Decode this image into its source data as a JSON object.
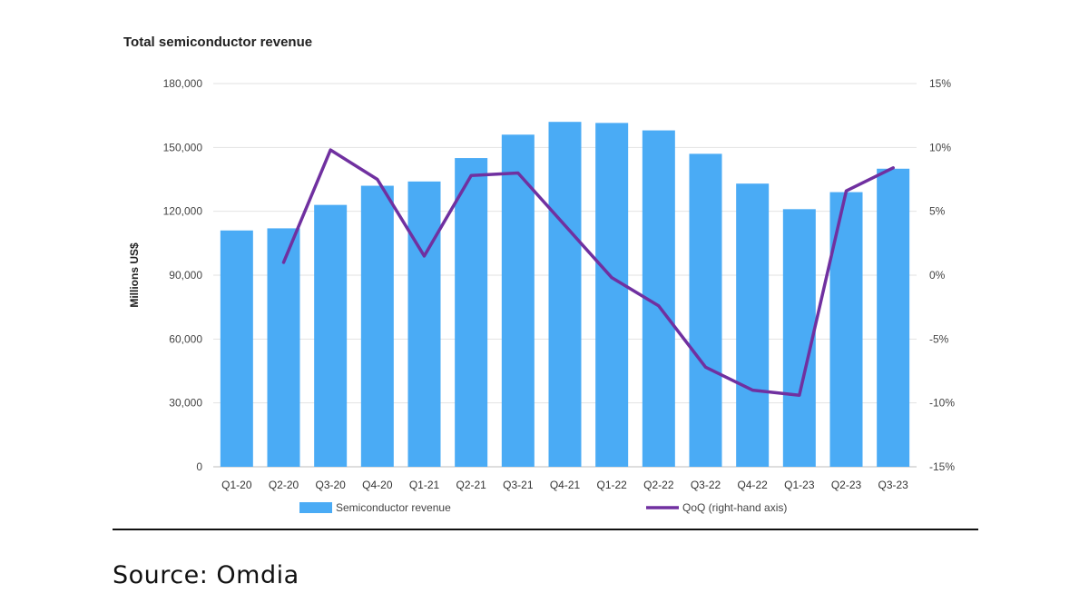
{
  "chart_data": {
    "type": "bar+line",
    "title": "Total semiconductor revenue",
    "categories": [
      "Q1-20",
      "Q2-20",
      "Q3-20",
      "Q4-20",
      "Q1-21",
      "Q2-21",
      "Q3-21",
      "Q4-21",
      "Q1-22",
      "Q2-22",
      "Q3-22",
      "Q4-22",
      "Q1-23",
      "Q2-23",
      "Q3-23"
    ],
    "series": [
      {
        "name": "Semiconductor revenue",
        "type": "bar",
        "axis": "left",
        "color": "#4AABF5",
        "values": [
          111000,
          112000,
          123000,
          132000,
          134000,
          145000,
          156000,
          162000,
          161500,
          158000,
          147000,
          133000,
          121000,
          129000,
          140000
        ]
      },
      {
        "name": "QoQ (right-hand axis)",
        "type": "line",
        "axis": "right",
        "color": "#7030A0",
        "values": [
          null,
          1.0,
          9.8,
          7.5,
          1.5,
          7.8,
          8.0,
          null,
          -0.2,
          -2.4,
          -7.2,
          -9.0,
          -9.4,
          6.6,
          8.4
        ]
      }
    ],
    "ylabel": "Millions US$",
    "ylim": [
      0,
      180000
    ],
    "yticks": [
      0,
      30000,
      60000,
      90000,
      120000,
      150000,
      180000
    ],
    "ytick_labels": [
      "0",
      "30,000",
      "60,000",
      "90,000",
      "120,000",
      "150,000",
      "180,000"
    ],
    "y2lim": [
      -15,
      15
    ],
    "y2ticks": [
      -15,
      -10,
      -5,
      0,
      5,
      10,
      15
    ],
    "y2tick_labels": [
      "-15%",
      "-10%",
      "-5%",
      "0%",
      "5%",
      "10%",
      "15%"
    ],
    "grid": true,
    "legend": "bottom"
  },
  "source": "Source: Omdia"
}
